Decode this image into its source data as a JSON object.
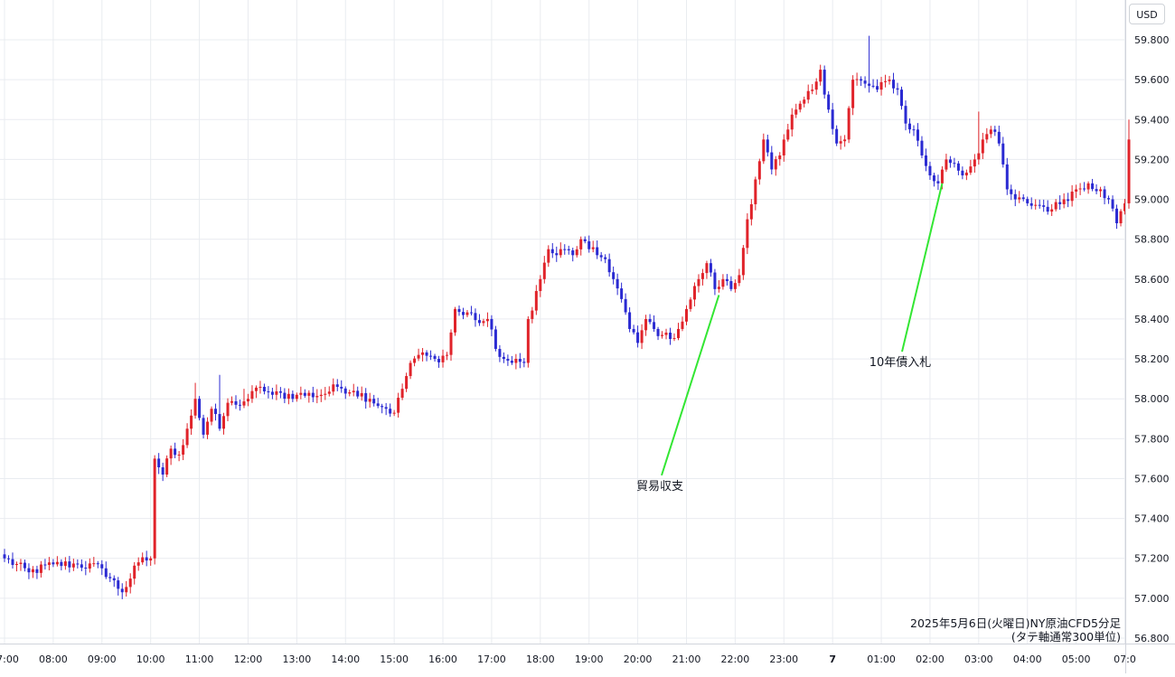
{
  "chart_data": {
    "type": "candlestick",
    "currency": "USD",
    "caption_line1": "2025年5月6日(火曜日)NY原油CFD5分足",
    "caption_line2": "(タテ軸通常300単位)",
    "ylim": [
      56.8,
      59.85
    ],
    "y_ticks": [
      "59.800",
      "59.600",
      "59.400",
      "59.200",
      "59.000",
      "58.800",
      "58.600",
      "58.400",
      "58.200",
      "58.000",
      "57.800",
      "57.600",
      "57.400",
      "57.200",
      "57.000",
      "56.800"
    ],
    "x_ticks": [
      {
        "label": "07:00",
        "index": 0
      },
      {
        "label": "08:00",
        "index": 12
      },
      {
        "label": "09:00",
        "index": 24
      },
      {
        "label": "10:00",
        "index": 36
      },
      {
        "label": "11:00",
        "index": 48
      },
      {
        "label": "12:00",
        "index": 60
      },
      {
        "label": "13:00",
        "index": 72
      },
      {
        "label": "14:00",
        "index": 84
      },
      {
        "label": "15:00",
        "index": 96
      },
      {
        "label": "16:00",
        "index": 108
      },
      {
        "label": "17:00",
        "index": 120
      },
      {
        "label": "18:00",
        "index": 132
      },
      {
        "label": "19:00",
        "index": 144
      },
      {
        "label": "20:00",
        "index": 156
      },
      {
        "label": "21:00",
        "index": 168
      },
      {
        "label": "22:00",
        "index": 180
      },
      {
        "label": "23:00",
        "index": 192
      },
      {
        "label": "7",
        "index": 204
      },
      {
        "label": "01:00",
        "index": 216
      },
      {
        "label": "02:00",
        "index": 228
      },
      {
        "label": "03:00",
        "index": 240
      },
      {
        "label": "04:00",
        "index": 252
      },
      {
        "label": "05:00",
        "index": 264
      },
      {
        "label": "07:0",
        "index": 276
      }
    ],
    "anchors": [
      [
        0,
        57.2
      ],
      [
        6,
        57.13
      ],
      [
        12,
        57.17
      ],
      [
        18,
        57.17
      ],
      [
        24,
        57.15
      ],
      [
        29,
        57.03
      ],
      [
        33,
        57.18
      ],
      [
        36,
        57.2
      ],
      [
        37,
        57.7
      ],
      [
        39,
        57.62
      ],
      [
        41,
        57.75
      ],
      [
        43,
        57.72
      ],
      [
        45,
        57.85
      ],
      [
        47,
        58.0
      ],
      [
        49,
        57.82
      ],
      [
        51,
        57.95
      ],
      [
        53,
        57.85
      ],
      [
        55,
        57.98
      ],
      [
        57,
        57.97
      ],
      [
        60,
        58.0
      ],
      [
        63,
        58.06
      ],
      [
        66,
        58.02
      ],
      [
        72,
        58.02
      ],
      [
        78,
        58.02
      ],
      [
        82,
        58.06
      ],
      [
        86,
        58.04
      ],
      [
        90,
        58.0
      ],
      [
        94,
        57.95
      ],
      [
        96,
        57.93
      ],
      [
        98,
        58.05
      ],
      [
        100,
        58.18
      ],
      [
        102,
        58.22
      ],
      [
        106,
        58.2
      ],
      [
        109,
        58.22
      ],
      [
        111,
        58.45
      ],
      [
        113,
        58.42
      ],
      [
        115,
        58.43
      ],
      [
        117,
        58.38
      ],
      [
        119,
        58.4
      ],
      [
        121,
        58.25
      ],
      [
        123,
        58.2
      ],
      [
        125,
        58.18
      ],
      [
        128,
        58.18
      ],
      [
        129,
        58.4
      ],
      [
        132,
        58.6
      ],
      [
        134,
        58.75
      ],
      [
        136,
        58.72
      ],
      [
        138,
        58.75
      ],
      [
        140,
        58.72
      ],
      [
        142,
        58.8
      ],
      [
        144,
        58.75
      ],
      [
        146,
        58.72
      ],
      [
        148,
        58.7
      ],
      [
        150,
        58.6
      ],
      [
        152,
        58.5
      ],
      [
        154,
        58.35
      ],
      [
        156,
        58.28
      ],
      [
        158,
        58.4
      ],
      [
        160,
        58.35
      ],
      [
        162,
        58.32
      ],
      [
        164,
        58.3
      ],
      [
        166,
        58.35
      ],
      [
        168,
        58.45
      ],
      [
        171,
        58.6
      ],
      [
        173,
        58.68
      ],
      [
        175,
        58.55
      ],
      [
        177,
        58.6
      ],
      [
        179,
        58.55
      ],
      [
        181,
        58.62
      ],
      [
        183,
        58.9
      ],
      [
        185,
        59.1
      ],
      [
        187,
        59.3
      ],
      [
        189,
        59.15
      ],
      [
        191,
        59.22
      ],
      [
        193,
        59.35
      ],
      [
        195,
        59.45
      ],
      [
        197,
        59.5
      ],
      [
        199,
        59.55
      ],
      [
        201,
        59.65
      ],
      [
        203,
        59.45
      ],
      [
        205,
        59.28
      ],
      [
        207,
        59.3
      ],
      [
        209,
        59.6
      ],
      [
        212,
        59.58
      ],
      [
        215,
        59.55
      ],
      [
        218,
        59.6
      ],
      [
        220,
        59.55
      ],
      [
        222,
        59.38
      ],
      [
        224,
        59.35
      ],
      [
        226,
        59.22
      ],
      [
        228,
        59.12
      ],
      [
        230,
        59.08
      ],
      [
        232,
        59.2
      ],
      [
        234,
        59.18
      ],
      [
        236,
        59.12
      ],
      [
        239,
        59.2
      ],
      [
        241,
        59.3
      ],
      [
        243,
        59.35
      ],
      [
        245,
        59.28
      ],
      [
        247,
        59.05
      ],
      [
        249,
        59.0
      ],
      [
        252,
        58.98
      ],
      [
        255,
        58.97
      ],
      [
        258,
        58.95
      ],
      [
        261,
        59.0
      ],
      [
        264,
        59.05
      ],
      [
        267,
        59.08
      ],
      [
        270,
        59.05
      ],
      [
        272,
        59.0
      ],
      [
        274,
        58.88
      ],
      [
        276,
        58.98
      ],
      [
        277,
        59.3
      ]
    ],
    "spikes": [
      {
        "index": 47,
        "high": 58.08
      },
      {
        "index": 53,
        "high": 58.12
      },
      {
        "index": 59,
        "high": 58.05
      },
      {
        "index": 213,
        "high": 59.82
      },
      {
        "index": 240,
        "high": 59.44
      },
      {
        "index": 277,
        "high": 59.4
      }
    ],
    "up_color": "#e0232a",
    "down_color": "#2a2ad2",
    "annotations": [
      {
        "label": "貿易収支",
        "index": 176,
        "price": 58.52,
        "label_price": 57.58
      },
      {
        "label": "10年債入札",
        "index": 231,
        "price": 59.08,
        "label_price": 58.2
      }
    ],
    "annotation_color": "#33e633",
    "grid": true
  }
}
